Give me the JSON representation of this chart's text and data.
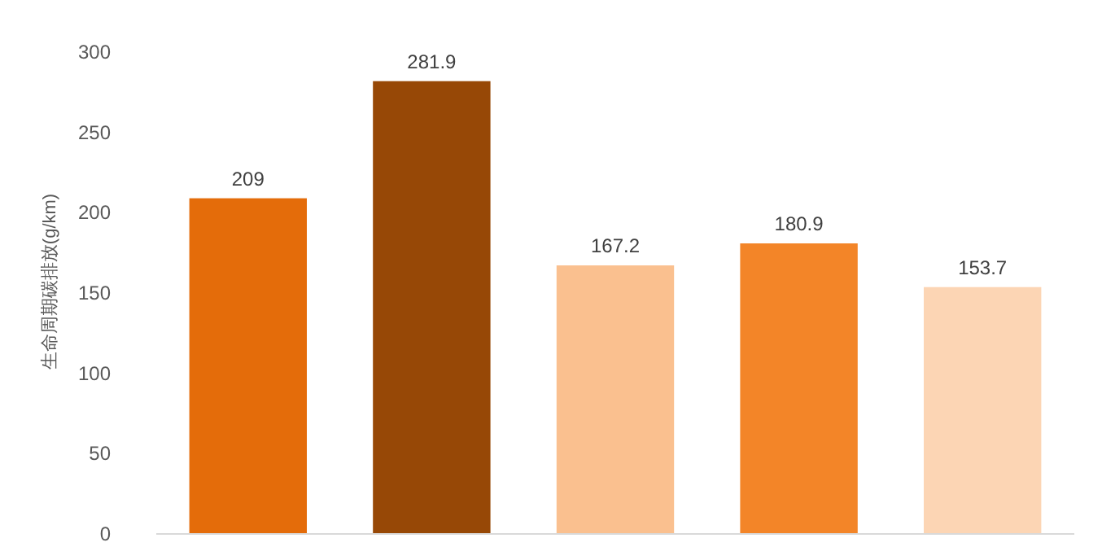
{
  "chart_data": {
    "type": "bar",
    "ylabel": "生命周期碳排放(g/km)",
    "categories": [
      null,
      null,
      null,
      null,
      null
    ],
    "values": [
      209,
      281.9,
      167.2,
      180.9,
      153.7
    ],
    "colors": [
      "#e46c0a",
      "#974806",
      "#fac08f",
      "#f38528",
      "#fcd5b4"
    ],
    "ylim": [
      0,
      300
    ],
    "yticks": [
      0,
      50,
      100,
      150,
      200,
      250,
      300
    ],
    "data_labels": true
  }
}
